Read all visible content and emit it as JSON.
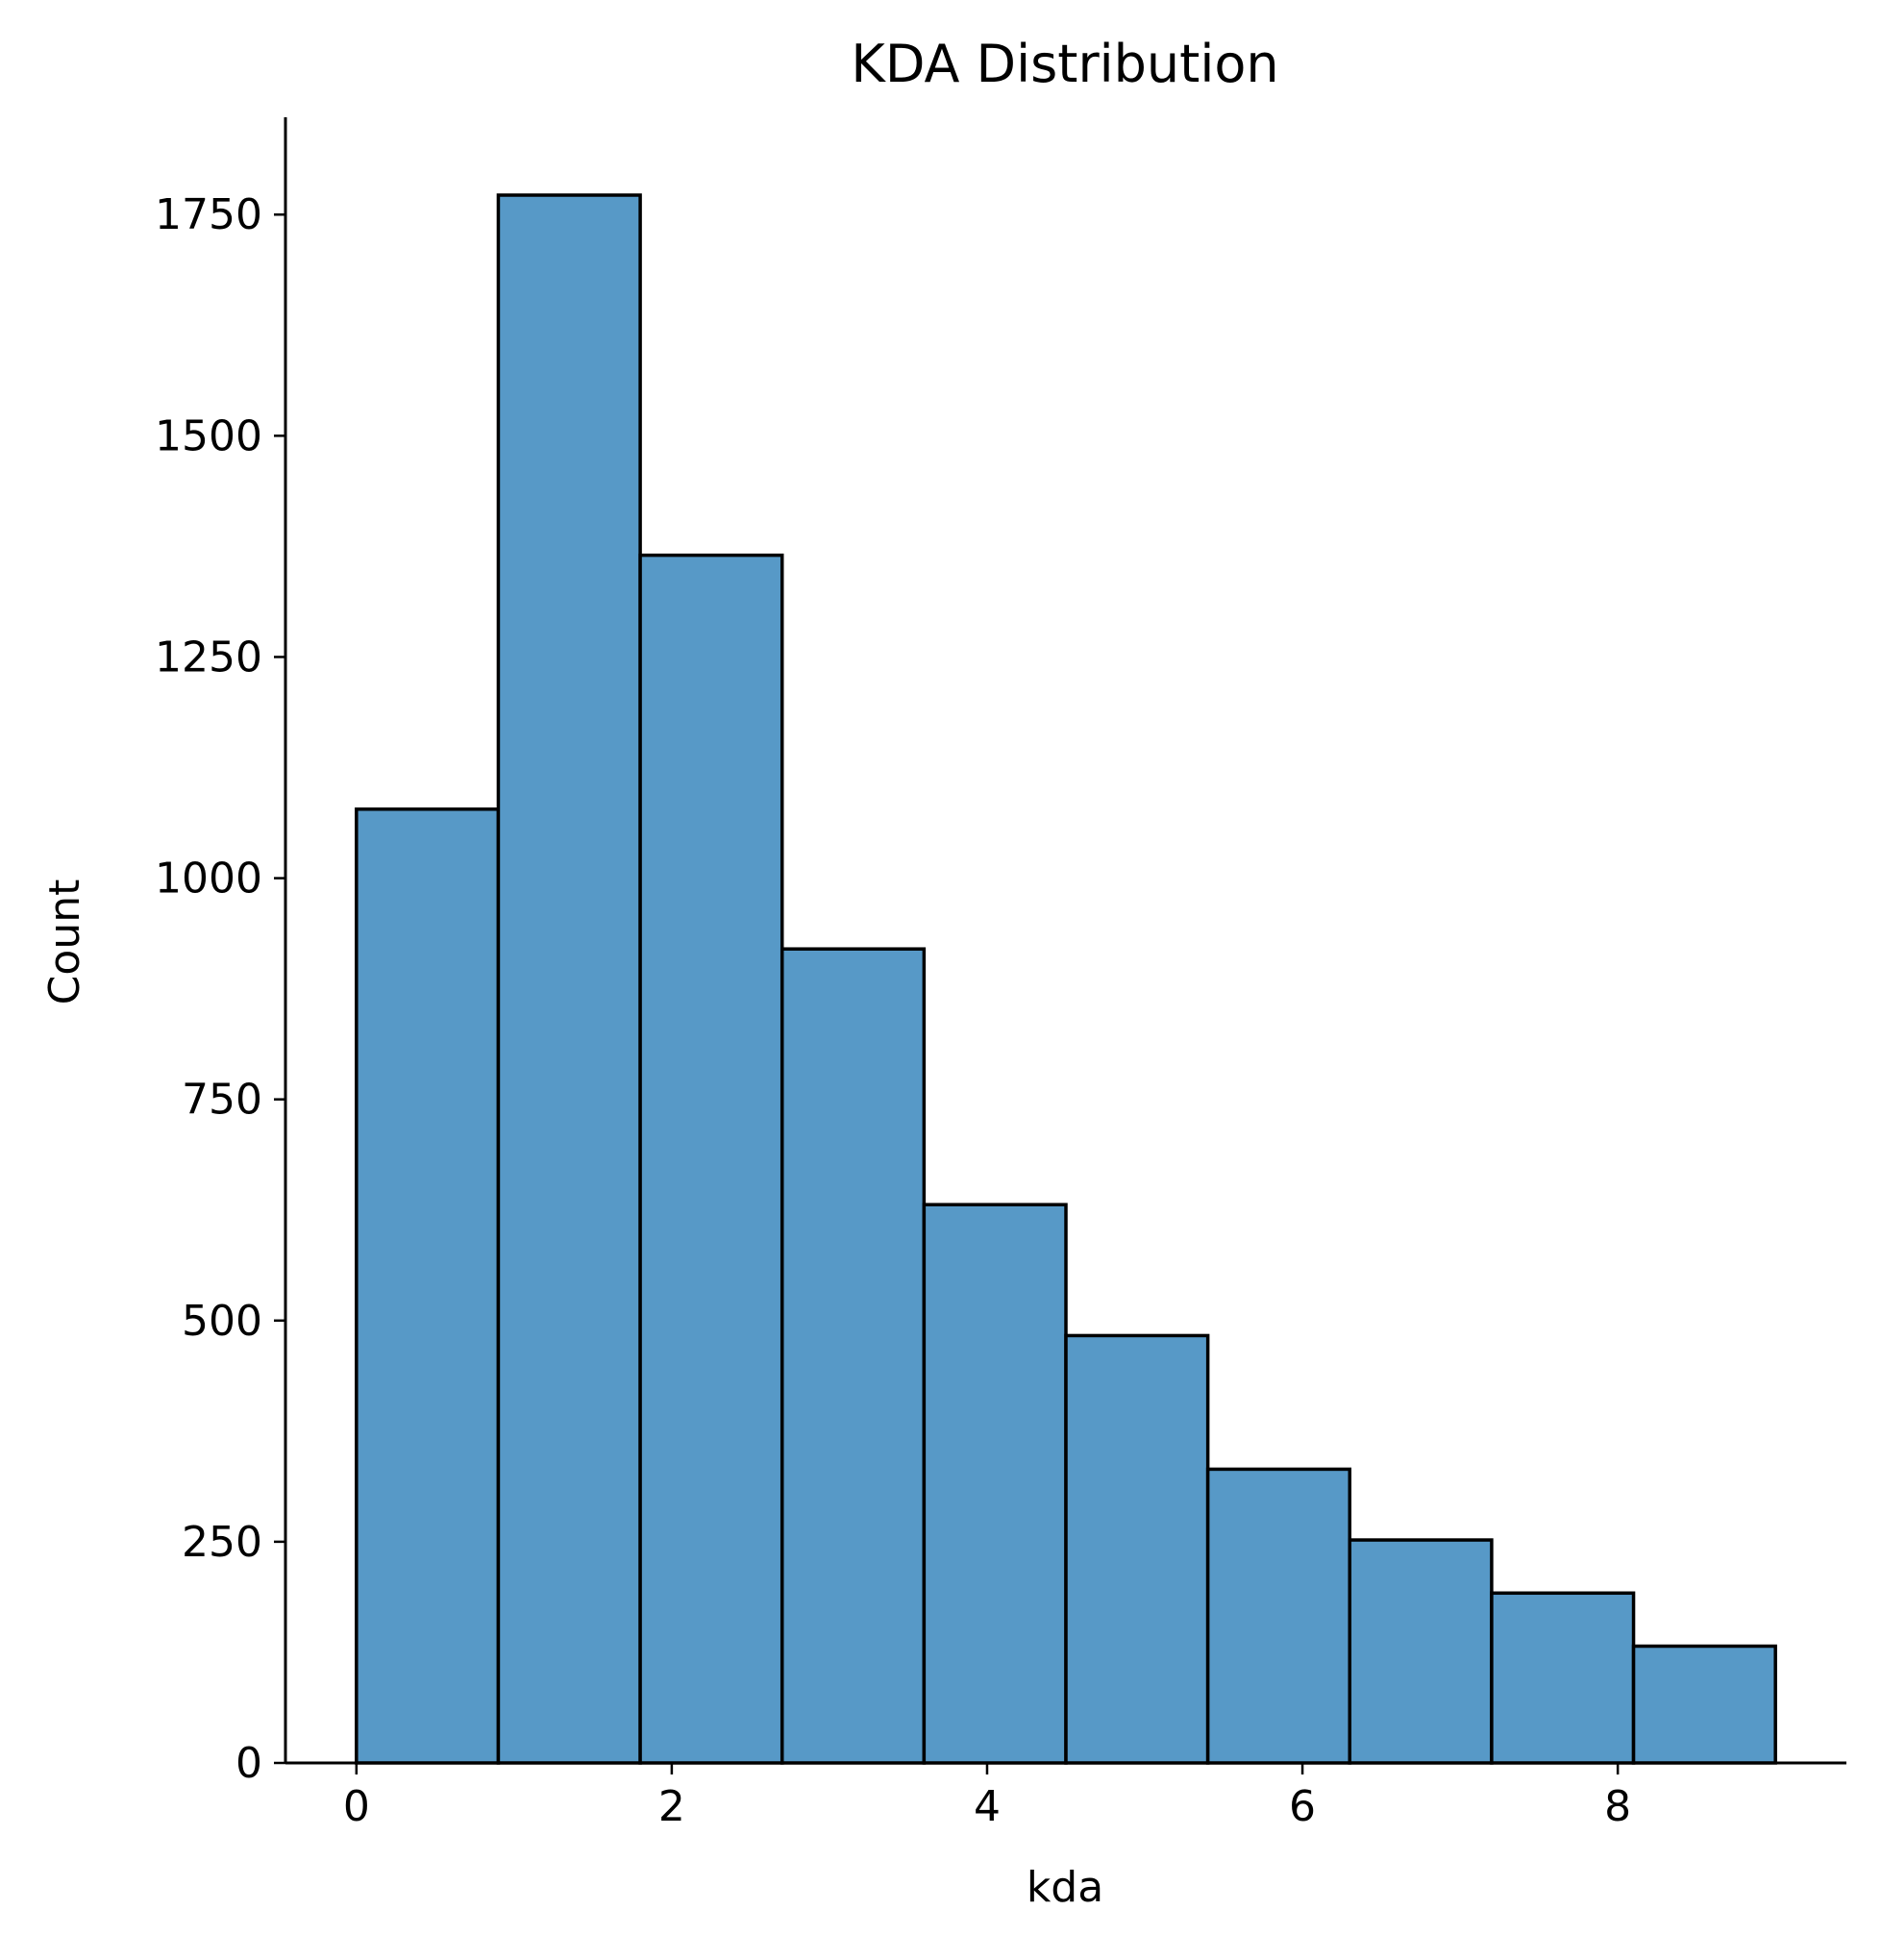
{
  "chart_data": {
    "type": "bar",
    "title": "KDA Distribution",
    "xlabel": "kda",
    "ylabel": "Count",
    "xlim": [
      -0.45,
      9.45
    ],
    "ylim": [
      0,
      1860
    ],
    "x_ticks": [
      0,
      2,
      4,
      6,
      8
    ],
    "y_ticks": [
      0,
      250,
      500,
      750,
      1000,
      1250,
      1500,
      1750
    ],
    "bin_edges": [
      0,
      0.9,
      1.8,
      2.7,
      3.6,
      4.5,
      5.4,
      6.3,
      7.2,
      8.1,
      9.0
    ],
    "values": [
      1078,
      1772,
      1365,
      920,
      631,
      483,
      332,
      252,
      192,
      132
    ],
    "grid": false,
    "bar_color": "#5799c7",
    "edge_color": "#000000"
  }
}
